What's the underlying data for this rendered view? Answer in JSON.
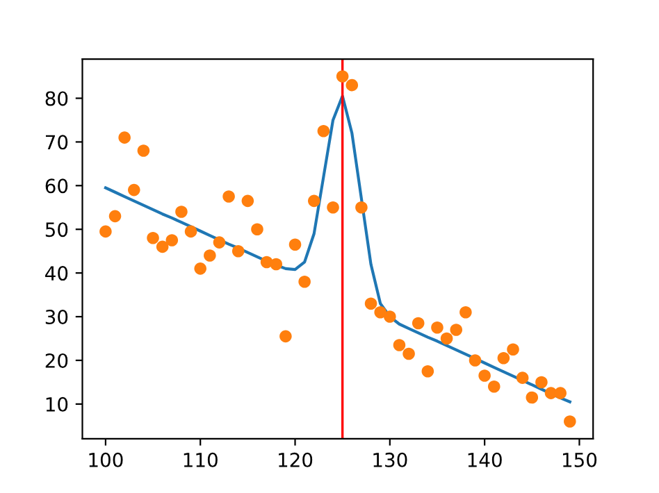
{
  "chart_data": {
    "type": "scatter",
    "x": [
      100,
      101,
      102,
      103,
      104,
      105,
      106,
      107,
      108,
      109,
      110,
      111,
      112,
      113,
      114,
      115,
      116,
      117,
      118,
      119,
      120,
      121,
      122,
      123,
      124,
      125,
      126,
      127,
      128,
      129,
      130,
      131,
      132,
      133,
      134,
      135,
      136,
      137,
      138,
      139,
      140,
      141,
      142,
      143,
      144,
      145,
      146,
      147,
      148,
      149
    ],
    "series": [
      {
        "type": "line",
        "color": "#1f77b4",
        "values": [
          59.5,
          58.5,
          57.5,
          56.5,
          55.5,
          54.5,
          53.5,
          52.6,
          51.6,
          50.6,
          49.6,
          48.6,
          47.6,
          46.6,
          45.7,
          44.7,
          43.7,
          42.7,
          41.8,
          41,
          40.8,
          42.5,
          49,
          62,
          75,
          80.5,
          72,
          57,
          42,
          33,
          30,
          28.3,
          27.3,
          26.3,
          25.3,
          24.4,
          23.4,
          22.4,
          21.4,
          20.4,
          19.4,
          18.4,
          17.4,
          16.4,
          15.4,
          14.4,
          13.4,
          12.4,
          11.4,
          10.5
        ]
      },
      {
        "color": "#ff7f0e",
        "marker": "circle",
        "values": [
          49.5,
          53,
          71,
          59,
          68,
          48,
          46,
          47.5,
          54,
          49.5,
          41,
          44,
          47,
          57.5,
          45,
          56.5,
          50,
          42.5,
          42,
          25.5,
          46.5,
          38,
          56.5,
          72.5,
          55,
          85,
          83,
          55,
          33,
          31,
          30,
          23.5,
          21.5,
          28.5,
          17.5,
          27.5,
          25,
          27,
          31,
          20,
          16.5,
          14,
          20.5,
          22.5,
          16,
          11.5,
          15,
          12.5,
          12.5,
          6
        ]
      }
    ],
    "ref_lines": [
      {
        "axis": "x",
        "value": 125,
        "color": "#ff0000"
      }
    ],
    "xlim": [
      97.55,
      151.45
    ],
    "ylim": [
      2.05,
      88.95
    ],
    "xticks": [
      100,
      110,
      120,
      130,
      140,
      150
    ],
    "yticks": [
      10,
      20,
      30,
      40,
      50,
      60,
      70,
      80
    ],
    "grid": false
  }
}
